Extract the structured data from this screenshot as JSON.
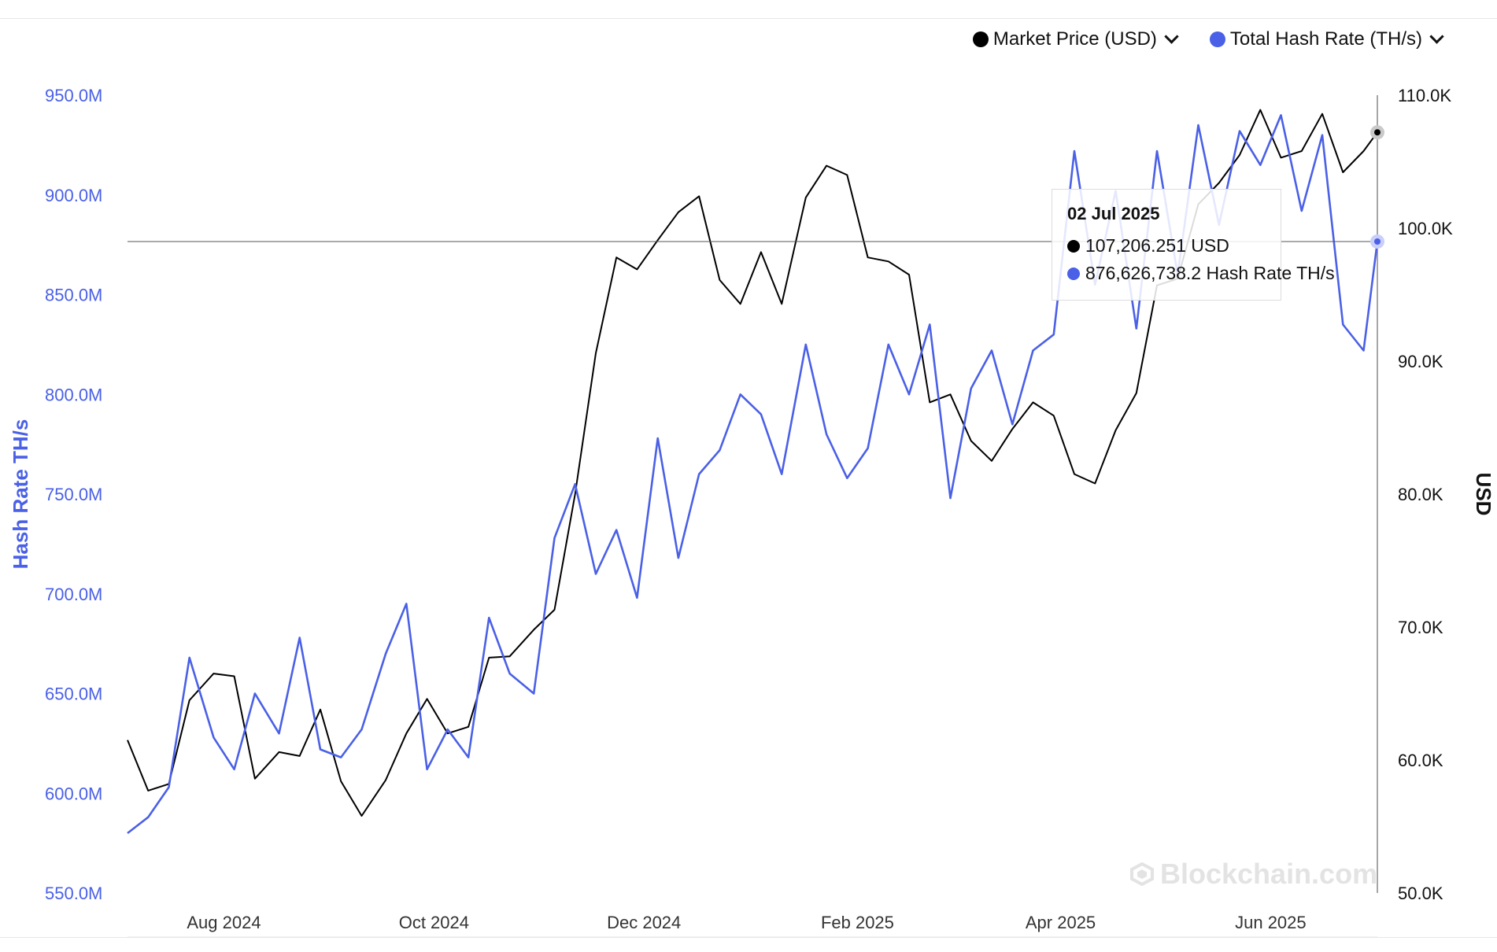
{
  "legend": {
    "items": [
      {
        "label": "Market Price (USD)",
        "color": "#000000",
        "icon": "chevron-down-icon"
      },
      {
        "label": "Total Hash Rate (TH/s)",
        "color": "#4a60e6",
        "icon": "chevron-down-icon"
      }
    ]
  },
  "tooltip": {
    "date": "02 Jul 2025",
    "price_text": "107,206.251 USD",
    "hash_text": "876,626,738.2 Hash Rate TH/s"
  },
  "watermark": {
    "text": "Blockchain.com",
    "icon": "blockchain-logo-icon"
  },
  "chart_data": {
    "type": "line",
    "title": "",
    "grid": false,
    "legend_position": "top-right",
    "x_tick_labels": [
      "Aug 2024",
      "Oct 2024",
      "Dec 2024",
      "Feb 2025",
      "Apr 2025",
      "Jun 2025"
    ],
    "x_tick_dates": [
      "2024-08-01",
      "2024-10-01",
      "2024-12-01",
      "2025-02-01",
      "2025-04-01",
      "2025-06-01"
    ],
    "x_range": [
      "2024-07-04",
      "2025-07-02"
    ],
    "y_left": {
      "label": "Hash Rate TH/s",
      "range": [
        550000000,
        950000000
      ],
      "ticks": [
        550000000,
        600000000,
        650000000,
        700000000,
        750000000,
        800000000,
        850000000,
        900000000,
        950000000
      ],
      "tick_labels": [
        "550.0M",
        "600.0M",
        "650.0M",
        "700.0M",
        "750.0M",
        "800.0M",
        "850.0M",
        "900.0M",
        "950.0M"
      ],
      "color": "#4a60e6"
    },
    "y_right": {
      "label": "USD",
      "range": [
        50000,
        110000
      ],
      "ticks": [
        50000,
        60000,
        70000,
        80000,
        90000,
        100000,
        110000
      ],
      "tick_labels": [
        "50.0K",
        "60.0K",
        "70.0K",
        "80.0K",
        "90.0K",
        "100.0K",
        "110.0K"
      ],
      "color": "#000000"
    },
    "crosshair": {
      "date": "2025-07-02",
      "hash_rate": 876626738.2,
      "price": 107206.251
    },
    "series": [
      {
        "name": "Market Price (USD)",
        "axis": "right",
        "color": "#000000",
        "x": [
          "2024-07-04",
          "2024-07-10",
          "2024-07-16",
          "2024-07-22",
          "2024-07-29",
          "2024-08-04",
          "2024-08-10",
          "2024-08-17",
          "2024-08-23",
          "2024-08-29",
          "2024-09-04",
          "2024-09-10",
          "2024-09-17",
          "2024-09-23",
          "2024-09-29",
          "2024-10-05",
          "2024-10-11",
          "2024-10-17",
          "2024-10-23",
          "2024-10-30",
          "2024-11-05",
          "2024-11-11",
          "2024-11-17",
          "2024-11-23",
          "2024-11-29",
          "2024-12-05",
          "2024-12-11",
          "2024-12-17",
          "2024-12-23",
          "2024-12-29",
          "2025-01-04",
          "2025-01-10",
          "2025-01-17",
          "2025-01-23",
          "2025-01-29",
          "2025-02-04",
          "2025-02-10",
          "2025-02-16",
          "2025-02-22",
          "2025-02-28",
          "2025-03-06",
          "2025-03-12",
          "2025-03-18",
          "2025-03-24",
          "2025-03-30",
          "2025-04-05",
          "2025-04-11",
          "2025-04-17",
          "2025-04-23",
          "2025-04-29",
          "2025-05-05",
          "2025-05-11",
          "2025-05-17",
          "2025-05-23",
          "2025-05-29",
          "2025-06-04",
          "2025-06-10",
          "2025-06-16",
          "2025-06-22",
          "2025-06-28",
          "2025-07-02"
        ],
        "values": [
          61500,
          57700,
          58200,
          64500,
          66500,
          66300,
          58600,
          60600,
          60300,
          63800,
          58400,
          55800,
          58500,
          62000,
          64600,
          62000,
          62500,
          67700,
          67800,
          69800,
          71300,
          80000,
          90600,
          97800,
          96900,
          99100,
          101200,
          102400,
          96100,
          94300,
          98200,
          94300,
          102300,
          104700,
          104000,
          97800,
          97500,
          96500,
          86900,
          87500,
          84000,
          82500,
          84900,
          86900,
          85900,
          81500,
          80800,
          84800,
          87600,
          95700,
          96200,
          101800,
          103400,
          105500,
          108900,
          105300,
          105800,
          108600,
          104200,
          105800,
          107206
        ]
      },
      {
        "name": "Total Hash Rate (TH/s)",
        "axis": "left",
        "color": "#4a60e6",
        "x": [
          "2024-07-04",
          "2024-07-10",
          "2024-07-16",
          "2024-07-22",
          "2024-07-29",
          "2024-08-04",
          "2024-08-10",
          "2024-08-17",
          "2024-08-23",
          "2024-08-29",
          "2024-09-04",
          "2024-09-10",
          "2024-09-17",
          "2024-09-23",
          "2024-09-29",
          "2024-10-05",
          "2024-10-11",
          "2024-10-17",
          "2024-10-23",
          "2024-10-30",
          "2024-11-05",
          "2024-11-11",
          "2024-11-17",
          "2024-11-23",
          "2024-11-29",
          "2024-12-05",
          "2024-12-11",
          "2024-12-17",
          "2024-12-23",
          "2024-12-29",
          "2025-01-04",
          "2025-01-10",
          "2025-01-17",
          "2025-01-23",
          "2025-01-29",
          "2025-02-04",
          "2025-02-10",
          "2025-02-16",
          "2025-02-22",
          "2025-02-28",
          "2025-03-06",
          "2025-03-12",
          "2025-03-18",
          "2025-03-24",
          "2025-03-30",
          "2025-04-05",
          "2025-04-11",
          "2025-04-17",
          "2025-04-23",
          "2025-04-29",
          "2025-05-05",
          "2025-05-11",
          "2025-05-17",
          "2025-05-23",
          "2025-05-29",
          "2025-06-04",
          "2025-06-10",
          "2025-06-16",
          "2025-06-22",
          "2025-06-28",
          "2025-07-02"
        ],
        "values": [
          580000000,
          588000000,
          603000000,
          668000000,
          628000000,
          612000000,
          650000000,
          630000000,
          678000000,
          622000000,
          618000000,
          632000000,
          670000000,
          695000000,
          612000000,
          632000000,
          618000000,
          688000000,
          660000000,
          650000000,
          728000000,
          755000000,
          710000000,
          732000000,
          698000000,
          778000000,
          718000000,
          760000000,
          772000000,
          800000000,
          790000000,
          760000000,
          825000000,
          780000000,
          758000000,
          773000000,
          825000000,
          800000000,
          835000000,
          748000000,
          803000000,
          822000000,
          785000000,
          822000000,
          830000000,
          922000000,
          855000000,
          902000000,
          833000000,
          922000000,
          860000000,
          935000000,
          885000000,
          932000000,
          915000000,
          940000000,
          892000000,
          930000000,
          835000000,
          822000000,
          876626738
        ]
      }
    ]
  }
}
